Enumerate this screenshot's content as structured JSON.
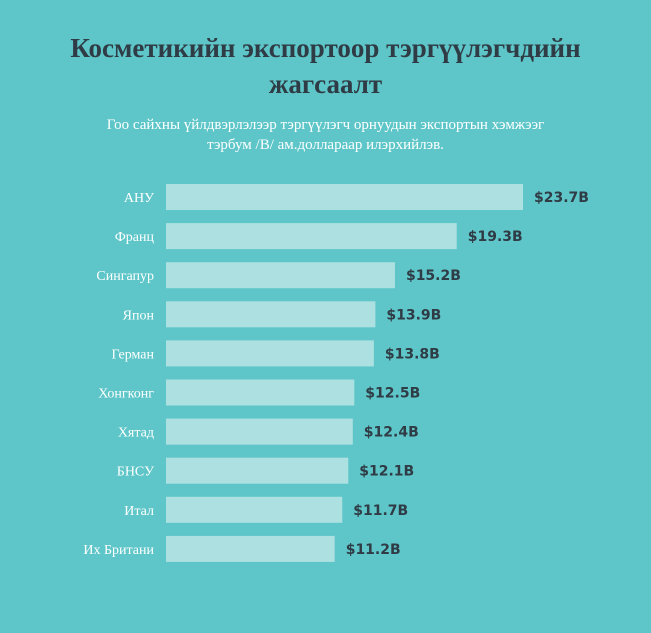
{
  "header": {
    "title_line1": "Косметикийн экспортоор тэргүүлэгчдийн",
    "title_line2": "жагсаалт",
    "subtitle_line1": "Гоо сайхны үйлдвэрлэлээр тэргүүлэгч орнуудын экспортын хэмжээг",
    "subtitle_line2": "тэрбум /B/ ам.доллараар илэрхийлэв."
  },
  "colors": {
    "background": "#5ec6c8",
    "bar": "#ade0e1",
    "title": "#2f3b45",
    "value_label": "#2f3b45",
    "category_label": "#ffffff"
  },
  "chart_data": {
    "type": "bar",
    "orientation": "horizontal",
    "categories": [
      "АНУ",
      "Франц",
      "Сингапур",
      "Япон",
      "Герман",
      "Хонгконг",
      "Хятад",
      "БНСУ",
      "Итал",
      "Их Британи"
    ],
    "values": [
      23.7,
      19.3,
      15.2,
      13.9,
      13.8,
      12.5,
      12.4,
      12.1,
      11.7,
      11.2
    ],
    "value_labels": [
      "$23.7B",
      "$19.3B",
      "$15.2B",
      "$13.9B",
      "$13.8B",
      "$12.5B",
      "$12.4B",
      "$12.1B",
      "$11.7B",
      "$11.2B"
    ],
    "xlim": [
      0,
      23.7
    ],
    "grid": false,
    "legend": "none"
  }
}
